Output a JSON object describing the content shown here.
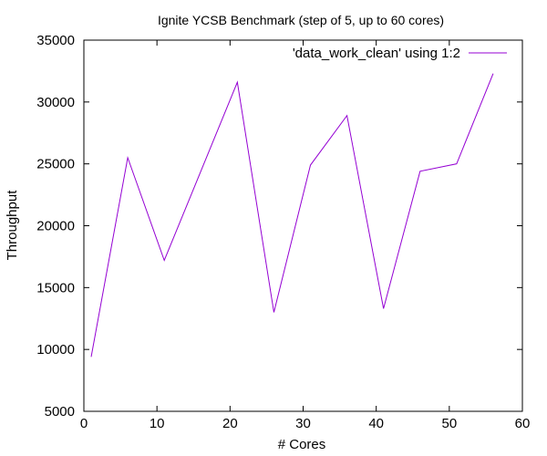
{
  "chart_data": {
    "type": "line",
    "title": "Ignite YCSB Benchmark (step of 5, up to 60 cores)",
    "xlabel": "# Cores",
    "ylabel": "Throughput",
    "xlim": [
      0,
      60
    ],
    "ylim": [
      5000,
      35000
    ],
    "x_ticks": [
      0,
      10,
      20,
      30,
      40,
      50,
      60
    ],
    "y_ticks": [
      5000,
      10000,
      15000,
      20000,
      25000,
      30000,
      35000
    ],
    "grid": false,
    "legend_position": "top-right",
    "series": [
      {
        "name": "'data_work_clean' using 1:2",
        "color": "#9400d3",
        "x": [
          1,
          6,
          11,
          16,
          21,
          26,
          31,
          36,
          41,
          46,
          51,
          56
        ],
        "y": [
          9400,
          25500,
          17200,
          24400,
          31600,
          13000,
          24900,
          28900,
          13300,
          24400,
          25000,
          32300
        ]
      }
    ]
  }
}
